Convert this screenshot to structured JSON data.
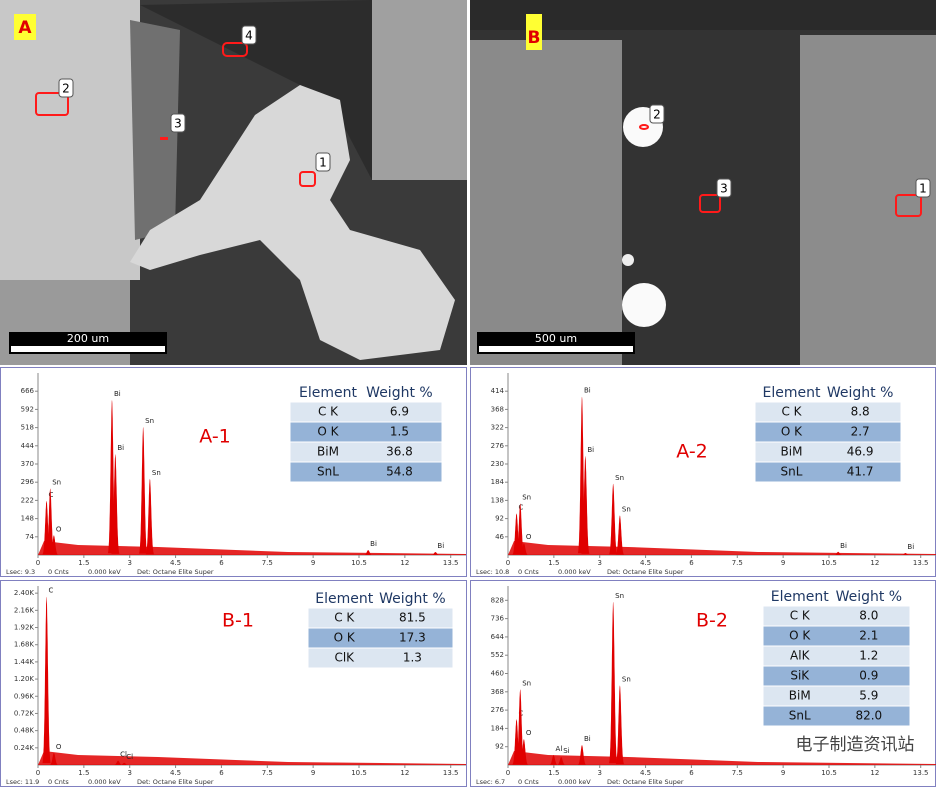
{
  "images": [
    {
      "label": "A",
      "scale_bar": "200 um",
      "markers": [
        "1",
        "2",
        "3",
        "4"
      ]
    },
    {
      "label": "B",
      "scale_bar": "500 um",
      "markers": [
        "1",
        "2",
        "3"
      ]
    }
  ],
  "spectra": [
    {
      "title": "A-1",
      "xlim": [
        0,
        14
      ],
      "xticks": [
        0,
        1.5,
        3.0,
        4.5,
        6.0,
        7.5,
        9.0,
        10.5,
        12.0,
        13.5
      ],
      "ylim": [
        0,
        740
      ],
      "yticks": [
        74,
        148,
        222,
        296,
        370,
        444,
        518,
        592,
        666
      ],
      "peaks": [
        {
          "label": "C",
          "x": 0.28,
          "y": 220
        },
        {
          "label": "Sn",
          "x": 0.4,
          "y": 270
        },
        {
          "label": "O",
          "x": 0.52,
          "y": 80
        },
        {
          "label": "Bi",
          "x": 2.42,
          "y": 630
        },
        {
          "label": "Bi",
          "x": 2.53,
          "y": 410
        },
        {
          "label": "Sn",
          "x": 3.44,
          "y": 520
        },
        {
          "label": "Sn",
          "x": 3.66,
          "y": 310
        },
        {
          "label": "Bi",
          "x": 10.8,
          "y": 20
        },
        {
          "label": "Bi",
          "x": 13.0,
          "y": 12
        }
      ],
      "footer": [
        "Lsec: 9.3",
        "0 Cnts",
        "0.000 keV",
        "Det: Octane Elite Super"
      ],
      "table": {
        "columns": [
          "Element",
          "Weight %"
        ],
        "rows": [
          [
            "C K",
            "6.9"
          ],
          [
            "O K",
            "1.5"
          ],
          [
            "BiM",
            "36.8"
          ],
          [
            "SnL",
            "54.8"
          ]
        ]
      }
    },
    {
      "title": "A-2",
      "xlim": [
        0,
        14
      ],
      "xticks": [
        0,
        1.5,
        3.0,
        4.5,
        6.0,
        7.5,
        9.0,
        10.5,
        12.0,
        13.5
      ],
      "ylim": [
        0,
        460
      ],
      "yticks": [
        46,
        92,
        138,
        184,
        230,
        276,
        322,
        368,
        414
      ],
      "peaks": [
        {
          "label": "C",
          "x": 0.28,
          "y": 105
        },
        {
          "label": "Sn",
          "x": 0.4,
          "y": 130
        },
        {
          "label": "O",
          "x": 0.52,
          "y": 30
        },
        {
          "label": "Bi",
          "x": 2.42,
          "y": 400
        },
        {
          "label": "Bi",
          "x": 2.53,
          "y": 250
        },
        {
          "label": "Sn",
          "x": 3.44,
          "y": 180
        },
        {
          "label": "Sn",
          "x": 3.66,
          "y": 100
        },
        {
          "label": "Bi",
          "x": 10.8,
          "y": 8
        },
        {
          "label": "Bi",
          "x": 13.0,
          "y": 5
        }
      ],
      "footer": [
        "Lsec: 10.8",
        "0 Cnts",
        "0.000 keV",
        "Det: Octane Elite Super"
      ],
      "table": {
        "columns": [
          "Element",
          "Weight %"
        ],
        "rows": [
          [
            "C K",
            "8.8"
          ],
          [
            "O K",
            "2.7"
          ],
          [
            "BiM",
            "46.9"
          ],
          [
            "SnL",
            "41.7"
          ]
        ]
      }
    },
    {
      "title": "B-1",
      "xlim": [
        0,
        14
      ],
      "xticks": [
        0,
        1.5,
        3.0,
        4.5,
        6.0,
        7.5,
        9.0,
        10.5,
        12.0,
        13.5
      ],
      "ylim": [
        0,
        2500
      ],
      "yticks": [
        {
          "value": 240,
          "label": "0.24K"
        },
        {
          "value": 480,
          "label": "0.48K"
        },
        {
          "value": 720,
          "label": "0.72K"
        },
        {
          "value": 960,
          "label": "0.96K"
        },
        {
          "value": 1200,
          "label": "1.20K"
        },
        {
          "value": 1440,
          "label": "1.44K"
        },
        {
          "value": 1680,
          "label": "1.68K"
        },
        {
          "value": 1920,
          "label": "1.92K"
        },
        {
          "value": 2160,
          "label": "2.16K"
        },
        {
          "value": 2400,
          "label": "2.40K"
        }
      ],
      "peaks": [
        {
          "label": "C",
          "x": 0.28,
          "y": 2350
        },
        {
          "label": "O",
          "x": 0.52,
          "y": 170
        },
        {
          "label": "Cl",
          "x": 2.62,
          "y": 60
        },
        {
          "label": "Cl",
          "x": 2.82,
          "y": 30
        }
      ],
      "footer": [
        "Lsec: 11.9",
        "0 Cnts",
        "0.000 keV",
        "Det: Octane Elite Super"
      ],
      "table": {
        "columns": [
          "Element",
          "Weight %"
        ],
        "rows": [
          [
            "C K",
            "81.5"
          ],
          [
            "O K",
            "17.3"
          ],
          [
            "ClK",
            "1.3"
          ]
        ]
      }
    },
    {
      "title": "B-2",
      "xlim": [
        0,
        14
      ],
      "xticks": [
        0,
        1.5,
        3.0,
        4.5,
        6.0,
        7.5,
        9.0,
        10.5,
        12.0,
        13.5
      ],
      "ylim": [
        0,
        900
      ],
      "yticks": [
        92,
        184,
        276,
        368,
        460,
        552,
        644,
        736,
        828
      ],
      "peaks": [
        {
          "label": "C",
          "x": 0.28,
          "y": 230
        },
        {
          "label": "Sn",
          "x": 0.4,
          "y": 380
        },
        {
          "label": "O",
          "x": 0.52,
          "y": 130
        },
        {
          "label": "Al",
          "x": 1.49,
          "y": 50
        },
        {
          "label": "Si",
          "x": 1.74,
          "y": 40
        },
        {
          "label": "Bi",
          "x": 2.42,
          "y": 100
        },
        {
          "label": "Sn",
          "x": 3.44,
          "y": 820
        },
        {
          "label": "Sn",
          "x": 3.66,
          "y": 400
        }
      ],
      "footer": [
        "Lsec: 6.7",
        "0 Cnts",
        "0.000 keV",
        "Det: Octane Elite Super"
      ],
      "table": {
        "columns": [
          "Element",
          "Weight %"
        ],
        "rows": [
          [
            "C K",
            "8.0"
          ],
          [
            "O K",
            "2.1"
          ],
          [
            "AlK",
            "1.2"
          ],
          [
            "SiK",
            "0.9"
          ],
          [
            "BiM",
            "5.9"
          ],
          [
            "SnL",
            "82.0"
          ]
        ]
      }
    }
  ],
  "watermark": "电子制造资讯站"
}
